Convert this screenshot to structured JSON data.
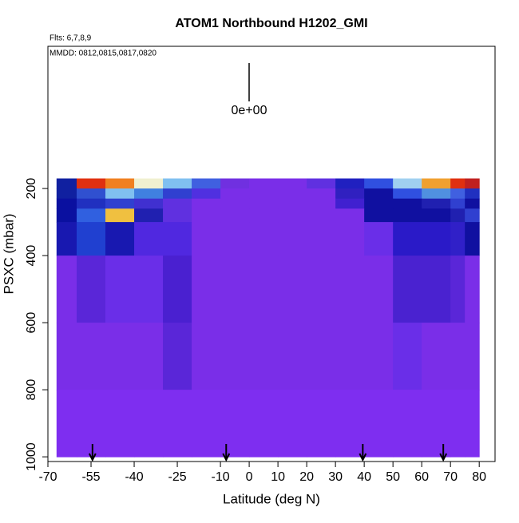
{
  "chart_data": {
    "type": "heatmap",
    "title": "ATOM1 Northbound H1202_GMI",
    "subtitle": "Flts: 6,7,8,9",
    "annotation": "MMDD: 0812,0815,0817,0820",
    "legend_label": "0e+00",
    "xlabel": "Latitude (deg N)",
    "ylabel": "PSXC (mbar)",
    "xlim": [
      -70,
      85.5
    ],
    "xticks": [
      -70,
      -55,
      -40,
      -25,
      -10,
      0,
      10,
      20,
      30,
      40,
      50,
      60,
      70,
      80
    ],
    "ylim": [
      1014,
      -224
    ],
    "yticks": [
      200,
      400,
      600,
      800,
      1000
    ],
    "heatmap": {
      "lat_edges": [
        -67,
        -60,
        -50,
        -40,
        -30,
        -20,
        -10,
        0,
        10,
        20,
        30,
        40,
        50,
        60,
        70,
        75,
        80
      ],
      "p_edges": [
        170,
        200,
        230,
        260,
        300,
        400,
        600,
        800,
        1000
      ],
      "colors": [
        [
          "#1020a0",
          "#e03010",
          "#f08020",
          "#f0f0d0",
          "#80c0f0",
          "#4060e0",
          "#7030e0",
          "#7a2ee8",
          "#7a2ee8",
          "#6030e0",
          "#2020c0",
          "#3050e0",
          "#a0d0f0",
          "#f0a030",
          "#e03010",
          "#c02020"
        ],
        [
          "#1020a0",
          "#3050d0",
          "#80c0f0",
          "#4080e0",
          "#3040d0",
          "#5030e0",
          "#7a2ee8",
          "#7a2ee8",
          "#7a2ee8",
          "#7a2ee8",
          "#3020c0",
          "#1010a0",
          "#3050e0",
          "#5090e0",
          "#4060e0",
          "#2030c0"
        ],
        [
          "#0a10a0",
          "#2030c0",
          "#3040d0",
          "#4030d0",
          "#6030e0",
          "#7a2ee8",
          "#7a2ee8",
          "#7a2ee8",
          "#7a2ee8",
          "#7a2ee8",
          "#4020d0",
          "#1010a0",
          "#1010a0",
          "#2020b0",
          "#3040d0",
          "#1010a0"
        ],
        [
          "#0a10a0",
          "#3060e0",
          "#f0c040",
          "#2020b0",
          "#6030e0",
          "#7a2ee8",
          "#7a2ee8",
          "#7a2ee8",
          "#7a2ee8",
          "#7a2ee8",
          "#7a2ee8",
          "#1010a0",
          "#1010a0",
          "#1010a0",
          "#2020b0",
          "#3040d0"
        ],
        [
          "#1818b0",
          "#2040d0",
          "#1818b0",
          "#5028e0",
          "#5028e0",
          "#7a2ee8",
          "#7a2ee8",
          "#7a2ee8",
          "#7a2ee8",
          "#7a2ee8",
          "#7a2ee8",
          "#6a2ee8",
          "#2a1ac8",
          "#2a1ac8",
          "#3020c8",
          "#1010a0"
        ],
        [
          "#7a2ee8",
          "#5a26d8",
          "#6a2ee8",
          "#6a2ee8",
          "#4a20d0",
          "#7a2ee8",
          "#7a2ee8",
          "#7a2ee8",
          "#7a2ee8",
          "#7a2ee8",
          "#7a2ee8",
          "#7a2ee8",
          "#4a22d0",
          "#4a22d0",
          "#5a26d8",
          "#7a2ee8"
        ],
        [
          "#7a2ee8",
          "#7a2ee8",
          "#7a2ee8",
          "#7a2ee8",
          "#5a26d8",
          "#7a2ee8",
          "#7a2ee8",
          "#7a2ee8",
          "#7a2ee8",
          "#7a2ee8",
          "#7a2ee8",
          "#7a2ee8",
          "#6a2ee8",
          "#7a2ee8",
          "#7a2ee8",
          "#7a2ee8"
        ],
        [
          "#7e2ef0",
          "#7e2ef0",
          "#7e2ef0",
          "#7e2ef0",
          "#7e2ef0",
          "#7e2ef0",
          "#7e2ef0",
          "#7e2ef0",
          "#7e2ef0",
          "#7e2ef0",
          "#7e2ef0",
          "#7e2ef0",
          "#7e2ef0",
          "#7e2ef0",
          "#7e2ef0",
          "#7e2ef0"
        ]
      ]
    },
    "arrows": [
      -54.5,
      -8,
      39.5,
      67.5
    ]
  }
}
